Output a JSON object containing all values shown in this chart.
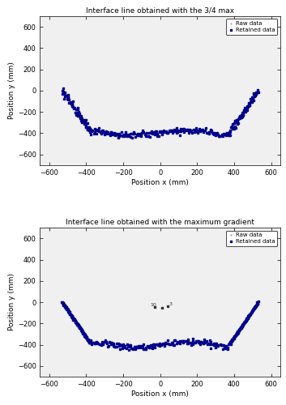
{
  "title1": "Interface line obtained with the 3/4 max",
  "title2": "Interface line obtained with the maximum gradient",
  "xlabel": "Position x (mm)",
  "ylabel": "Position y (mm)",
  "xlim": [
    -650,
    650
  ],
  "ylim": [
    -700,
    700
  ],
  "xticks": [
    -600,
    -400,
    -200,
    0,
    200,
    400,
    600
  ],
  "yticks": [
    -600,
    -400,
    -200,
    0,
    200,
    400,
    600
  ],
  "raw_color": "#b0b0b0",
  "retained_color": "#00008B",
  "raw_label": "Raw data",
  "retained_label": "Retained data",
  "raw_size": 2,
  "retained_size": 3,
  "background_color": "#ffffff",
  "axes_bg_color": "#f0f0f0"
}
